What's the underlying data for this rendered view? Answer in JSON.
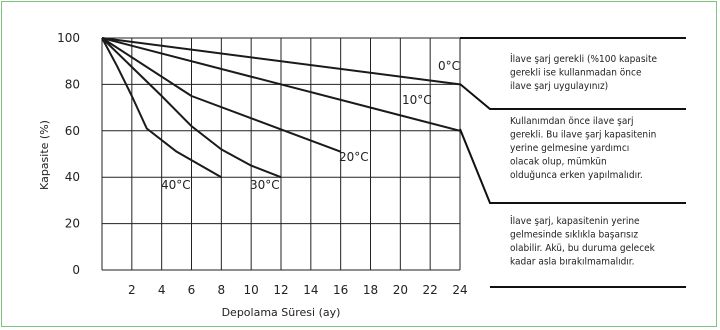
{
  "chart_data": {
    "type": "line",
    "xlabel": "Depolama Süresi (ay)",
    "ylabel": "Kapasite (%)",
    "xlim": [
      0,
      24
    ],
    "ylim": [
      0,
      100
    ],
    "x_ticks": [
      "2",
      "4",
      "6",
      "8",
      "10",
      "12",
      "14",
      "16",
      "18",
      "20",
      "22",
      "24"
    ],
    "y_ticks": [
      "0",
      "20",
      "40",
      "60",
      "80",
      "100"
    ],
    "grid": true,
    "series": [
      {
        "name": "0°C",
        "x": [
          0,
          24
        ],
        "y": [
          100,
          80
        ]
      },
      {
        "name": "10°C",
        "x": [
          0,
          24
        ],
        "y": [
          100,
          60
        ]
      },
      {
        "name": "20°C",
        "x": [
          0,
          6,
          16
        ],
        "y": [
          100,
          75,
          51
        ]
      },
      {
        "name": "30°C",
        "x": [
          0,
          4,
          6,
          8,
          10,
          12
        ],
        "y": [
          100,
          75,
          62,
          52,
          45,
          40
        ]
      },
      {
        "name": "40°C",
        "x": [
          0,
          1,
          2,
          3,
          5,
          8
        ],
        "y": [
          100,
          88,
          75,
          61,
          51,
          40
        ]
      }
    ],
    "annotations": [
      {
        "lines": [
          "İlave şarj gerekli (%100 kapasite",
          "gerekli ise kullanmadan önce",
          "ilave şarj uygulayınız)"
        ]
      },
      {
        "lines": [
          "Kullanımdan önce ilave şarj",
          "gerekli. Bu ilave şarj kapasitenin",
          "yerine gelmesine yardımcı",
          "olacak olup, mümkün",
          "olduğunca erken yapılmalıdır."
        ]
      },
      {
        "lines": [
          "İlave şarj, kapasitenin yerine",
          "gelmesinde sıklıkla başarısız",
          "olabilir. Akü, bu duruma gelecek",
          "kadar asla bırakılmamalıdır."
        ]
      }
    ]
  }
}
